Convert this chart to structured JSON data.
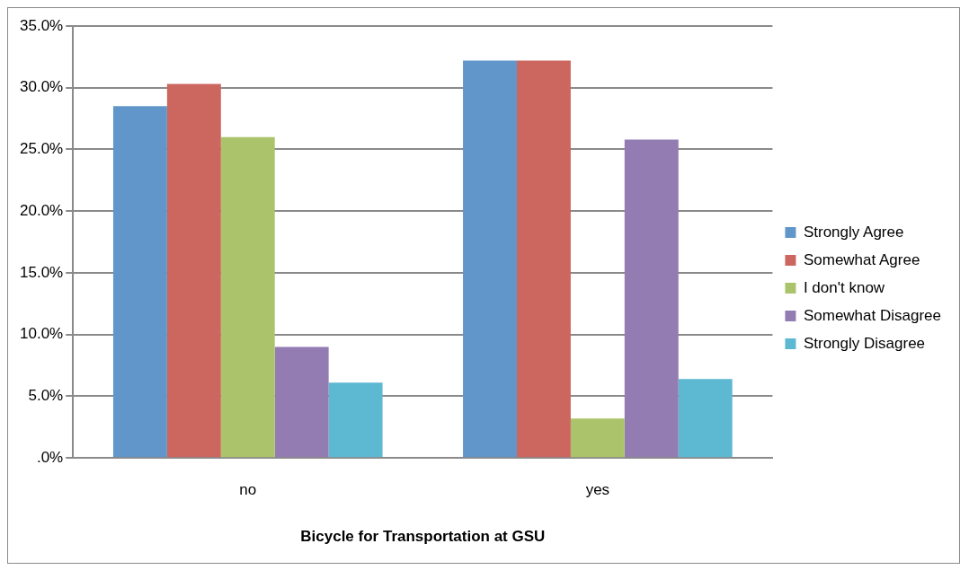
{
  "chart_data": {
    "type": "bar",
    "xlabel": "Bicycle for Transportation at GSU",
    "categories": [
      "no",
      "yes"
    ],
    "series": [
      {
        "name": "Strongly Agree",
        "color": "#6096c9",
        "values": [
          28.5,
          32.2
        ]
      },
      {
        "name": "Somewhat Agree",
        "color": "#cc6760",
        "values": [
          30.3,
          32.2
        ]
      },
      {
        "name": "I don't know",
        "color": "#abc46c",
        "values": [
          26.0,
          3.2
        ]
      },
      {
        "name": "Somewhat Disagree",
        "color": "#937cb1",
        "values": [
          9.0,
          25.8
        ]
      },
      {
        "name": "Strongly Disagree",
        "color": "#5db8d2",
        "values": [
          6.1,
          6.4
        ]
      }
    ],
    "ylim": [
      0,
      35
    ],
    "yticks": [
      {
        "value": 0,
        "label": ".0%"
      },
      {
        "value": 5,
        "label": "5.0%"
      },
      {
        "value": 10,
        "label": "10.0%"
      },
      {
        "value": 15,
        "label": "15.0%"
      },
      {
        "value": 20,
        "label": "20.0%"
      },
      {
        "value": 25,
        "label": "25.0%"
      },
      {
        "value": 30,
        "label": "30.0%"
      },
      {
        "value": 35,
        "label": "35.0%"
      }
    ],
    "grid": "y",
    "legend": "right"
  }
}
